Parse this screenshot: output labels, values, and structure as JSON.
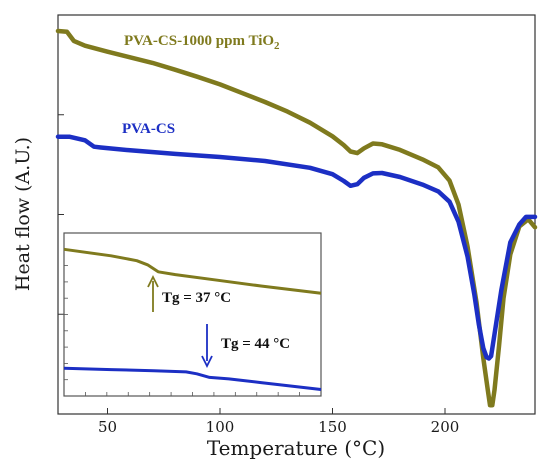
{
  "chart_data": {
    "type": "line",
    "title": "",
    "xlabel": "Temperature (°C)",
    "ylabel": "Heat flow (A.U.)",
    "xlim": [
      28,
      240
    ],
    "ylim": [
      0,
      100
    ],
    "x_ticks": [
      50,
      100,
      150,
      200
    ],
    "y_ticks_labeled": false,
    "grid": false,
    "series": [
      {
        "name": "PVA-CS-1000 ppm TiO",
        "subscript": "2",
        "color": "#7f7a1e",
        "points": [
          [
            28,
            96
          ],
          [
            32,
            95.8
          ],
          [
            35,
            93.5
          ],
          [
            40,
            92.3
          ],
          [
            50,
            90.8
          ],
          [
            60,
            89.4
          ],
          [
            70,
            88.0
          ],
          [
            80,
            86.3
          ],
          [
            90,
            84.5
          ],
          [
            100,
            82.6
          ],
          [
            110,
            80.4
          ],
          [
            120,
            78.2
          ],
          [
            130,
            75.8
          ],
          [
            140,
            73.0
          ],
          [
            150,
            69.6
          ],
          [
            155,
            67.4
          ],
          [
            158,
            65.8
          ],
          [
            161,
            65.4
          ],
          [
            164,
            66.6
          ],
          [
            168,
            67.8
          ],
          [
            172,
            67.6
          ],
          [
            180,
            66.2
          ],
          [
            190,
            63.8
          ],
          [
            197,
            61.8
          ],
          [
            202,
            58.5
          ],
          [
            206,
            52.5
          ],
          [
            210,
            42
          ],
          [
            214,
            28
          ],
          [
            217,
            14
          ],
          [
            219,
            6
          ],
          [
            220,
            2.2
          ],
          [
            221,
            2.2
          ],
          [
            222,
            6
          ],
          [
            224,
            17
          ],
          [
            226,
            29
          ],
          [
            229,
            40
          ],
          [
            233,
            47
          ],
          [
            237,
            48.8
          ],
          [
            240,
            46.8
          ]
        ]
      },
      {
        "name": "PVA-CS",
        "subscript": "",
        "color": "#1c2fc4",
        "points": [
          [
            28,
            69.5
          ],
          [
            33,
            69.5
          ],
          [
            40,
            68.6
          ],
          [
            44,
            67.0
          ],
          [
            47,
            66.8
          ],
          [
            60,
            66.1
          ],
          [
            80,
            65.2
          ],
          [
            100,
            64.4
          ],
          [
            120,
            63.4
          ],
          [
            140,
            61.7
          ],
          [
            150,
            60.1
          ],
          [
            155,
            58.4
          ],
          [
            158,
            57.2
          ],
          [
            161,
            57.6
          ],
          [
            164,
            59.2
          ],
          [
            168,
            60.3
          ],
          [
            172,
            60.4
          ],
          [
            180,
            59.4
          ],
          [
            190,
            57.5
          ],
          [
            197,
            55.8
          ],
          [
            202,
            53.2
          ],
          [
            206,
            48.2
          ],
          [
            210,
            39.5
          ],
          [
            213,
            30
          ],
          [
            215,
            22.5
          ],
          [
            217,
            16.5
          ],
          [
            218.5,
            14.2
          ],
          [
            219.5,
            13.9
          ],
          [
            220.5,
            14.5
          ],
          [
            222,
            20
          ],
          [
            225,
            31
          ],
          [
            229,
            43
          ],
          [
            233,
            47.5
          ],
          [
            236,
            49.4
          ],
          [
            240,
            49.4
          ]
        ]
      }
    ],
    "inset": {
      "xlim": [
        28,
        148
      ],
      "ylim": [
        0,
        100
      ],
      "series": [
        {
          "color": "#7f7a1e",
          "points": [
            [
              28,
              90
            ],
            [
              50,
              86
            ],
            [
              62,
              83
            ],
            [
              67,
              80.5
            ],
            [
              72,
              76.2
            ],
            [
              80,
              74.5
            ],
            [
              100,
              71
            ],
            [
              120,
              67.5
            ],
            [
              148,
              63
            ]
          ]
        },
        {
          "color": "#1c2fc4",
          "points": [
            [
              28,
              17
            ],
            [
              50,
              16.2
            ],
            [
              70,
              15.5
            ],
            [
              85,
              14.8
            ],
            [
              90,
              13.6
            ],
            [
              96,
              11.4
            ],
            [
              105,
              10.5
            ],
            [
              120,
              8.2
            ],
            [
              148,
              4
            ]
          ]
        }
      ],
      "annotations": [
        {
          "text": "Tg = 37 °C",
          "color": "#7f7a1e",
          "direction": "up"
        },
        {
          "text": "Tg = 44 °C",
          "color": "#1c2fc4",
          "direction": "down"
        }
      ]
    }
  }
}
